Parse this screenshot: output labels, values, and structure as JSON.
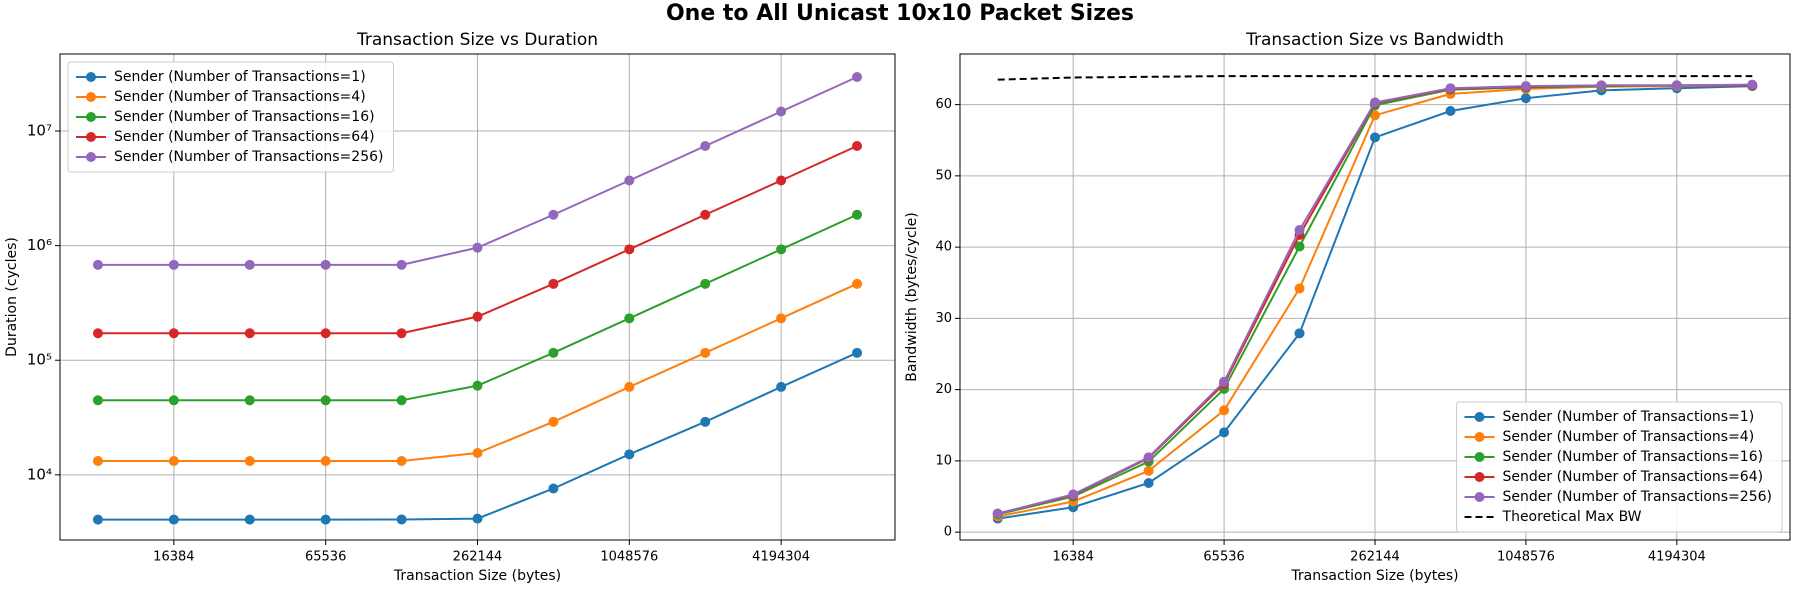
{
  "title": "One to All Unicast 10x10 Packet Sizes",
  "chart_data": [
    {
      "type": "line",
      "title": "Transaction Size vs Duration",
      "x_label": "Transaction Size (bytes)",
      "y_label": "Duration (cycles)",
      "xscale": "log",
      "yscale": "log",
      "grid": true,
      "legend": "upper left",
      "x": [
        8192,
        16384,
        32768,
        65536,
        131072,
        262144,
        524288,
        1048576,
        2097152,
        4194304,
        8388608
      ],
      "xlim": [
        5793,
        11863283
      ],
      "xticks": [
        16384,
        65536,
        262144,
        1048576,
        4194304
      ],
      "ylim": [
        2700,
        47000000
      ],
      "yticks": [
        {
          "value": 10000,
          "label": "10⁴"
        },
        {
          "value": 100000,
          "label": "10⁵"
        },
        {
          "value": 1000000,
          "label": "10⁶"
        },
        {
          "value": 10000000,
          "label": "10⁷"
        }
      ],
      "series": [
        {
          "name": "Sender (Number of Transactions=1)",
          "color": "#1f77b4",
          "linestyle": "solid",
          "marker": true,
          "values": [
            4070,
            4070,
            4070,
            4070,
            4080,
            4150,
            7600,
            15100,
            29000,
            58500,
            116000
          ]
        },
        {
          "name": "Sender (Number of Transactions=4)",
          "color": "#ff7f0e",
          "linestyle": "solid",
          "marker": true,
          "values": [
            13200,
            13200,
            13200,
            13200,
            13200,
            15500,
            29000,
            58500,
            116000,
            232000,
            464000
          ]
        },
        {
          "name": "Sender (Number of Transactions=16)",
          "color": "#2ca02c",
          "linestyle": "solid",
          "marker": true,
          "values": [
            44700,
            44700,
            44700,
            44700,
            44700,
            60000,
            116000,
            232000,
            464000,
            928000,
            1860000
          ]
        },
        {
          "name": "Sender (Number of Transactions=64)",
          "color": "#d62728",
          "linestyle": "solid",
          "marker": true,
          "values": [
            172000,
            172000,
            172000,
            172000,
            172000,
            240000,
            464000,
            928000,
            1860000,
            3700000,
            7400000
          ]
        },
        {
          "name": "Sender (Number of Transactions=256)",
          "color": "#9467bd",
          "linestyle": "solid",
          "marker": true,
          "values": [
            680000,
            680000,
            680000,
            680000,
            680000,
            960000,
            1860000,
            3700000,
            7400000,
            14800000,
            29600000
          ]
        }
      ]
    },
    {
      "type": "line",
      "title": "Transaction Size vs Bandwidth",
      "x_label": "Transaction Size (bytes)",
      "y_label": "Bandwidth (bytes/cycle)",
      "xscale": "log",
      "yscale": "linear",
      "grid": true,
      "legend": "lower right",
      "x": [
        8192,
        16384,
        32768,
        65536,
        131072,
        262144,
        524288,
        1048576,
        2097152,
        4194304,
        8388608
      ],
      "xlim": [
        5793,
        11863283
      ],
      "xticks": [
        16384,
        65536,
        262144,
        1048576,
        4194304
      ],
      "ylim": [
        -1.1,
        67.1
      ],
      "yticks": [
        0,
        10,
        20,
        30,
        40,
        50,
        60
      ],
      "series": [
        {
          "name": "Sender (Number of Transactions=1)",
          "color": "#1f77b4",
          "linestyle": "solid",
          "marker": true,
          "values": [
            1.9,
            3.5,
            6.9,
            14.0,
            27.9,
            55.4,
            59.1,
            60.9,
            62.0,
            62.3,
            62.6
          ]
        },
        {
          "name": "Sender (Number of Transactions=4)",
          "color": "#ff7f0e",
          "linestyle": "solid",
          "marker": true,
          "values": [
            2.2,
            4.3,
            8.6,
            17.1,
            34.2,
            58.5,
            61.5,
            62.2,
            62.5,
            62.6,
            62.7
          ]
        },
        {
          "name": "Sender (Number of Transactions=16)",
          "color": "#2ca02c",
          "linestyle": "solid",
          "marker": true,
          "values": [
            2.5,
            5.0,
            9.9,
            20.1,
            40.1,
            59.9,
            62.1,
            62.4,
            62.6,
            62.7,
            62.7
          ]
        },
        {
          "name": "Sender (Number of Transactions=64)",
          "color": "#d62728",
          "linestyle": "solid",
          "marker": true,
          "values": [
            2.6,
            5.2,
            10.4,
            20.8,
            41.7,
            60.2,
            62.2,
            62.5,
            62.7,
            62.7,
            62.7
          ]
        },
        {
          "name": "Sender (Number of Transactions=256)",
          "color": "#9467bd",
          "linestyle": "solid",
          "marker": true,
          "values": [
            2.6,
            5.3,
            10.5,
            21.1,
            42.4,
            60.3,
            62.3,
            62.6,
            62.7,
            62.7,
            62.8
          ]
        },
        {
          "name": "Theoretical Max BW",
          "color": "#000000",
          "linestyle": "dashed",
          "marker": false,
          "values": [
            63.5,
            63.8,
            63.9,
            64.0,
            64.0,
            64.0,
            64.0,
            64.0,
            64.0,
            64.0,
            64.0
          ]
        }
      ]
    }
  ]
}
